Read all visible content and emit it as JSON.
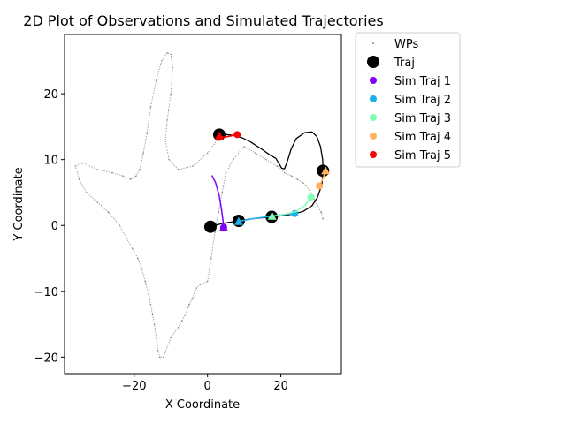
{
  "chart_data": {
    "type": "scatter",
    "title": "2D Plot of Observations and Simulated Trajectories",
    "xlabel": "X Coordinate",
    "ylabel": "Y Coordinate",
    "xlim": [
      -39,
      36.5
    ],
    "ylim": [
      -22.5,
      29
    ],
    "xticks": [
      -20,
      0,
      20
    ],
    "yticks": [
      -20,
      -10,
      0,
      10,
      20
    ],
    "xtick_labels": [
      "−20",
      "0",
      "20"
    ],
    "ytick_labels": [
      "−20",
      "−10",
      "0",
      "10",
      "20"
    ],
    "grid": false,
    "legend_position": "outside-right",
    "legend": [
      {
        "label": "WPs",
        "marker": "dot-small",
        "color": "#888888"
      },
      {
        "label": "Traj",
        "marker": "circle-large",
        "color": "#000000"
      },
      {
        "label": "Sim Traj 1",
        "marker": "circle",
        "color": "#8000ff"
      },
      {
        "label": "Sim Traj 2",
        "marker": "circle",
        "color": "#1cb2e8"
      },
      {
        "label": "Sim Traj 3",
        "marker": "circle",
        "color": "#80ffb4"
      },
      {
        "label": "Sim Traj 4",
        "marker": "circle",
        "color": "#ffb360"
      },
      {
        "label": "Sim Traj 5",
        "marker": "circle",
        "color": "#ff0000"
      }
    ],
    "series": [
      {
        "name": "WPs",
        "color": "#888888",
        "x": [
          4,
          0,
          -4,
          -8,
          -10.5,
          -11.5,
          -11,
          -10,
          -9.5,
          -10,
          -11,
          -12.5,
          -14,
          -15.5,
          -16.5,
          -17.5,
          -18.5,
          -19.5,
          -21,
          -23,
          -26,
          -30,
          -34,
          -36,
          -35,
          -33,
          -30,
          -27,
          -24,
          -22,
          -20.5,
          -19,
          -18,
          -17,
          -16,
          -15.5,
          -15,
          -14.5,
          -14,
          -13.5,
          -13,
          -12,
          -10,
          -8,
          -7,
          -6,
          -5,
          -4,
          -3.5,
          -3,
          -2,
          0,
          1,
          2,
          3,
          4,
          5,
          7,
          10,
          13,
          16,
          19,
          21,
          23,
          24.5,
          26,
          27,
          28,
          29,
          30,
          31,
          31.5
        ],
        "y": [
          14,
          11,
          9,
          8.5,
          10,
          13,
          16,
          20,
          24,
          26,
          26.2,
          25,
          22,
          18,
          14,
          11,
          8.5,
          7.5,
          7,
          7.5,
          8,
          8.5,
          9.5,
          9,
          7,
          5,
          3.5,
          2,
          0,
          -2,
          -3.5,
          -5,
          -6.5,
          -8.5,
          -10.5,
          -12,
          -13.5,
          -15,
          -17,
          -19,
          -20,
          -20,
          -17,
          -15.5,
          -14.5,
          -13.5,
          -12,
          -11,
          -10,
          -9.5,
          -9,
          -8.5,
          -5,
          -1,
          2,
          5,
          8,
          10,
          12,
          11,
          10,
          9,
          8,
          7.5,
          7,
          6.5,
          6,
          5,
          4,
          3,
          2,
          1
        ]
      },
      {
        "name": "Traj",
        "color": "#000000",
        "x": [
          0.8,
          8.5,
          17.5,
          31.5,
          3.2
        ],
        "y": [
          -0.2,
          0.7,
          1.3,
          8.3,
          13.8
        ]
      },
      {
        "name": "Sim Traj 1",
        "color": "#8000ff",
        "x": [
          1.2,
          2.2,
          3.2,
          3.8,
          4.2,
          4.4
        ],
        "y": [
          7.6,
          6.5,
          4.5,
          2.5,
          0.8,
          -0.3
        ]
      },
      {
        "name": "Sim Traj 2",
        "color": "#1cb2e8",
        "x": [
          8.5,
          12,
          16,
          20,
          23.8
        ],
        "y": [
          0.6,
          1.0,
          1.3,
          1.6,
          1.8
        ]
      },
      {
        "name": "Sim Traj 3",
        "color": "#80ffb4",
        "x": [
          17.6,
          21,
          24,
          26.5,
          28.2
        ],
        "y": [
          1.4,
          1.7,
          2.1,
          3.0,
          4.3
        ]
      },
      {
        "name": "Sim Traj 4",
        "color": "#ffb360",
        "x": [
          30.5,
          31.2,
          31.8,
          32.2
        ],
        "y": [
          6.0,
          6.8,
          7.6,
          8.3
        ]
      },
      {
        "name": "Sim Traj 5",
        "color": "#ff0000",
        "x": [
          3.2,
          4.6,
          6.4,
          8.1
        ],
        "y": [
          13.6,
          13.4,
          13.6,
          13.8
        ]
      }
    ],
    "traj_path": {
      "color": "#000000",
      "x": [
        0.8,
        4,
        8.5,
        12,
        17.5,
        22,
        26,
        28.5,
        30,
        31.2,
        31.5,
        31.4,
        30.8,
        29.8,
        28.5,
        26.5,
        24.2,
        22.8,
        21.8,
        21,
        20.2,
        19.4,
        18.6,
        17,
        15,
        12,
        9.5,
        7,
        5,
        3.2
      ],
      "y": [
        -0.2,
        0.3,
        0.7,
        1.0,
        1.3,
        1.6,
        2.1,
        3.0,
        4.3,
        6.2,
        8.3,
        10,
        12,
        13.5,
        14.2,
        14.1,
        13.2,
        11.6,
        9.8,
        8.6,
        8.7,
        9.5,
        10.2,
        10.7,
        11.5,
        12.6,
        13.3,
        13.7,
        13.8,
        13.8
      ]
    },
    "marker_triangles": [
      {
        "series": "Sim Traj 1",
        "x": 4.4,
        "y": -0.3,
        "color": "#8000ff"
      },
      {
        "series": "Sim Traj 2",
        "x": 8.5,
        "y": 0.6,
        "color": "#1cb2e8"
      },
      {
        "series": "Sim Traj 3",
        "x": 17.6,
        "y": 1.4,
        "color": "#80ffb4"
      },
      {
        "series": "Sim Traj 4",
        "x": 32.2,
        "y": 8.3,
        "color": "#ffb360"
      },
      {
        "series": "Sim Traj 5",
        "x": 3.2,
        "y": 13.6,
        "color": "#ff0000"
      }
    ]
  }
}
